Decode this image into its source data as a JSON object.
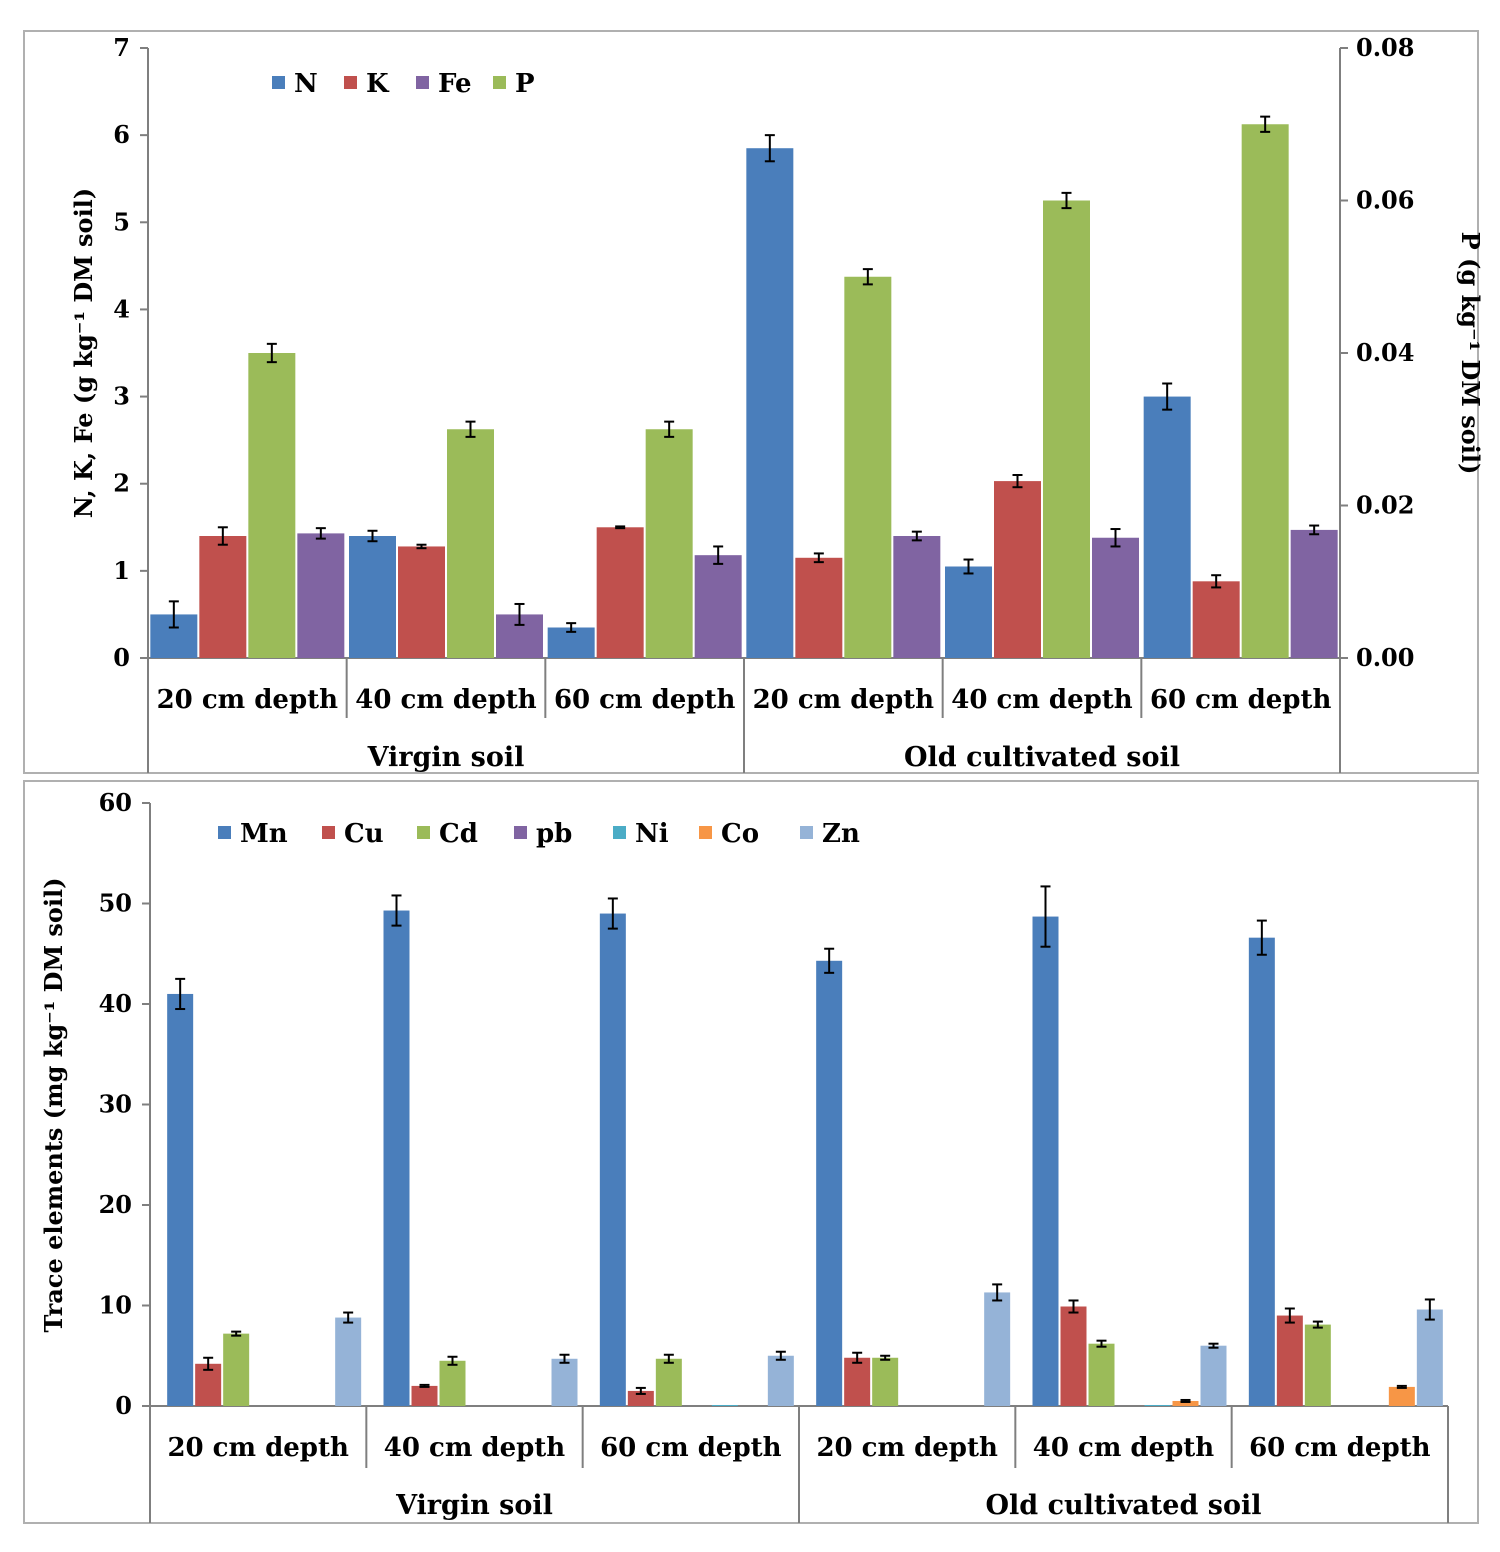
{
  "chart_data": [
    {
      "type": "bar",
      "groups": [
        "Virgin soil",
        "Old cultivated soil"
      ],
      "categories": [
        "20 cm depth",
        "40 cm depth",
        "60 cm depth",
        "20 cm depth",
        "40 cm depth",
        "60 cm depth"
      ],
      "ylabel_left": "N, K, Fe (g kg⁻¹ DM soil)",
      "ylabel_right": "P (g kg⁻¹ DM soil)",
      "ylim_left": [
        0,
        7
      ],
      "ylim_right": [
        0,
        0.08
      ],
      "yticks_left": [
        "0",
        "1",
        "2",
        "3",
        "4",
        "5",
        "6",
        "7"
      ],
      "yticks_right": [
        "0.00",
        "0.02",
        "0.04",
        "0.06",
        "0.08"
      ],
      "series": [
        {
          "name": "N",
          "axis": "left",
          "color": "#4a7ebb",
          "values": [
            0.5,
            1.4,
            0.35,
            5.85,
            1.05,
            3.0
          ],
          "errors": [
            0.15,
            0.06,
            0.05,
            0.15,
            0.08,
            0.15
          ]
        },
        {
          "name": "K",
          "axis": "left",
          "color": "#c0504d",
          "values": [
            1.4,
            1.28,
            1.5,
            1.15,
            2.03,
            0.88
          ],
          "errors": [
            0.1,
            0.02,
            0.01,
            0.05,
            0.07,
            0.07
          ]
        },
        {
          "name": "P",
          "axis": "right",
          "color": "#9bbb59",
          "values": [
            0.04,
            0.03,
            0.03,
            0.05,
            0.06,
            0.07
          ],
          "errors": [
            0.0012,
            0.001,
            0.001,
            0.001,
            0.001,
            0.001
          ]
        },
        {
          "name": "Fe",
          "axis": "left",
          "color": "#8064a2",
          "values": [
            1.43,
            0.5,
            1.18,
            1.4,
            1.38,
            1.47
          ],
          "errors": [
            0.06,
            0.12,
            0.1,
            0.05,
            0.1,
            0.05
          ]
        }
      ],
      "legend": [
        "N",
        "K",
        "Fe",
        "P"
      ]
    },
    {
      "type": "bar",
      "groups": [
        "Virgin soil",
        "Old cultivated soil"
      ],
      "categories": [
        "20 cm depth",
        "40 cm depth",
        "60 cm depth",
        "20 cm depth",
        "40 cm depth",
        "60 cm depth"
      ],
      "ylabel": "Trace elements  (mg kg⁻¹ DM soil)",
      "ylim": [
        0,
        60
      ],
      "yticks": [
        "0",
        "10",
        "20",
        "30",
        "40",
        "50",
        "60"
      ],
      "series": [
        {
          "name": "Mn",
          "color": "#4a7ebb",
          "values": [
            41,
            49.3,
            49,
            44.3,
            48.7,
            46.6
          ],
          "errors": [
            1.5,
            1.5,
            1.5,
            1.2,
            3.0,
            1.7
          ]
        },
        {
          "name": "Cu",
          "color": "#c0504d",
          "values": [
            4.2,
            2.0,
            1.5,
            4.8,
            9.9,
            9.0
          ],
          "errors": [
            0.6,
            0.1,
            0.3,
            0.5,
            0.6,
            0.7
          ]
        },
        {
          "name": "Cd",
          "color": "#9bbb59",
          "values": [
            7.2,
            4.5,
            4.7,
            4.8,
            6.2,
            8.1
          ],
          "errors": [
            0.2,
            0.4,
            0.4,
            0.2,
            0.3,
            0.3
          ]
        },
        {
          "name": "pb",
          "color": "#8064a2",
          "values": [
            0,
            0,
            0,
            0,
            0,
            0
          ],
          "errors": [
            0,
            0,
            0,
            0,
            0,
            0
          ]
        },
        {
          "name": "Ni",
          "color": "#4bacc6",
          "values": [
            0,
            0,
            0.1,
            0,
            0.1,
            0
          ],
          "errors": [
            0,
            0,
            0,
            0,
            0,
            0
          ]
        },
        {
          "name": "Co",
          "color": "#f79646",
          "values": [
            0,
            0,
            0,
            0,
            0.5,
            1.9
          ],
          "errors": [
            0,
            0,
            0,
            0,
            0.1,
            0.1
          ]
        },
        {
          "name": "Zn",
          "color": "#95b3d7",
          "values": [
            8.8,
            4.7,
            5.0,
            11.3,
            6.0,
            9.6
          ],
          "errors": [
            0.5,
            0.4,
            0.4,
            0.8,
            0.2,
            1.0
          ]
        }
      ],
      "legend": [
        "Mn",
        "Cu",
        "Cd",
        "pb",
        "Ni",
        "Co",
        "Zn"
      ]
    }
  ]
}
